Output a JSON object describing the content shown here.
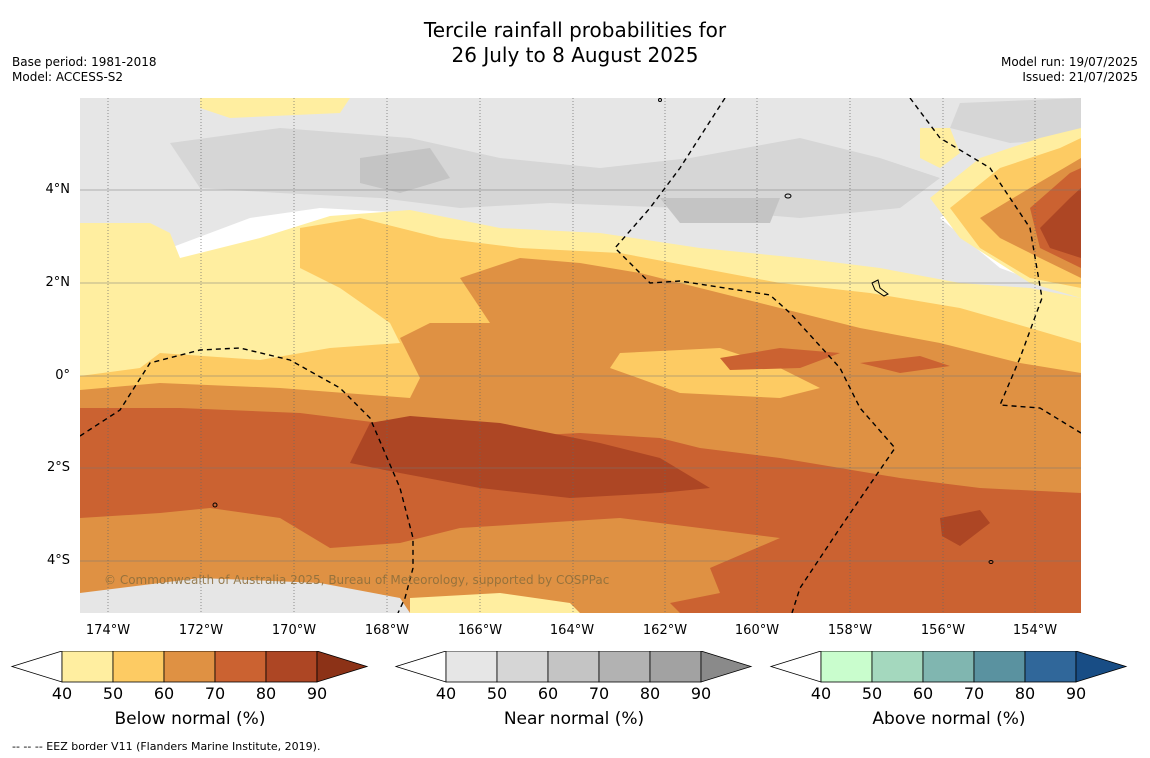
{
  "title_line1": "Tercile rainfall probabilities for",
  "title_line2": "26 July to 8 August 2025",
  "meta_left": {
    "base_period": "Base period: 1981-2018",
    "model": "Model: ACCESS-S2"
  },
  "meta_right": {
    "model_run": "Model run: 19/07/2025",
    "issued": "Issued: 21/07/2025"
  },
  "lon_labels": [
    "174°W",
    "172°W",
    "170°W",
    "168°W",
    "166°W",
    "164°W",
    "162°W",
    "160°W",
    "158°W",
    "156°W",
    "154°W"
  ],
  "lat_labels": [
    "4°N",
    "2°N",
    "0°",
    "2°S",
    "4°S"
  ],
  "copyright": "© Commonwealth of Australia 2025, Bureau of Meteorology, supported by COSPPac",
  "colorbars": [
    {
      "title": "Below normal (%)",
      "colors": [
        "#ffeea0",
        "#fdcb63",
        "#df9143",
        "#cb6231",
        "#ad4624"
      ],
      "end": "#8c3217",
      "ticks": [
        "40",
        "50",
        "60",
        "70",
        "80",
        "90"
      ]
    },
    {
      "title": "Near normal (%)",
      "colors": [
        "#e6e6e6",
        "#d6d6d6",
        "#c4c4c4",
        "#b2b2b2",
        "#a2a2a2"
      ],
      "end": "#8a8a8a",
      "ticks": [
        "40",
        "50",
        "60",
        "70",
        "80",
        "90"
      ]
    },
    {
      "title": "Above normal (%)",
      "colors": [
        "#c9fdcd",
        "#a4d8be",
        "#80b6b0",
        "#5a92a0",
        "#30679a"
      ],
      "end": "#184d85",
      "ticks": [
        "40",
        "50",
        "60",
        "70",
        "80",
        "90"
      ]
    }
  ],
  "footnote": "-- -- -- EEZ border V11 (Flanders Marine Institute, 2019)."
}
